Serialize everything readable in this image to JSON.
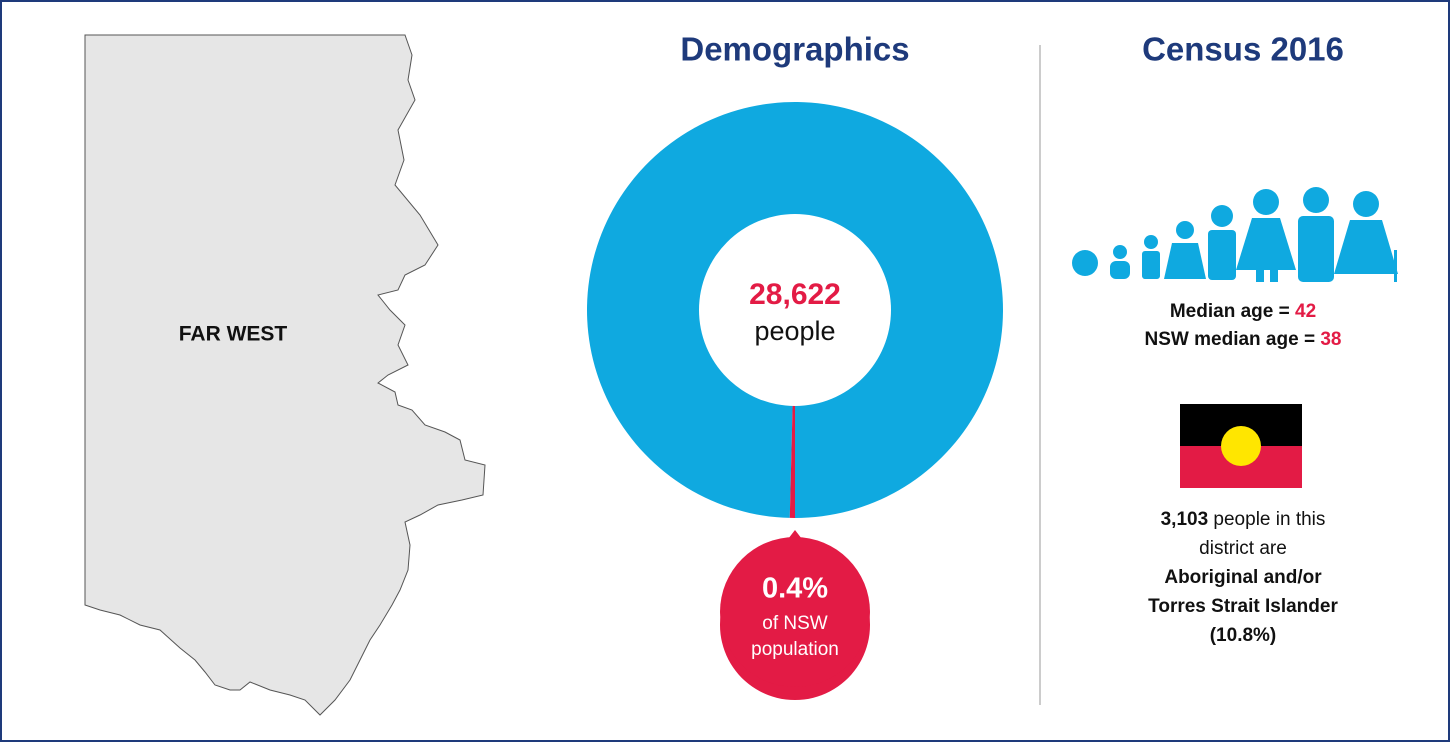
{
  "map": {
    "label": "FAR WEST"
  },
  "demographics": {
    "title": "Demographics",
    "total": "28,622",
    "total_caption": "people",
    "share": 0.4,
    "share_label": "0.4%",
    "share_caption": [
      "of NSW",
      "population"
    ]
  },
  "census": {
    "title": "Census 2016",
    "median_age": {
      "label": "Median age =",
      "value": "42"
    },
    "nsw_median_age": {
      "label": "NSW median age =",
      "value": "38"
    },
    "indigenous": {
      "count": "3,103",
      "lines": [
        "people in this",
        "district are"
      ],
      "bold_lines": [
        "Aboriginal and/or",
        "Torres Strait Islander",
        "(10.8%)"
      ]
    }
  }
}
